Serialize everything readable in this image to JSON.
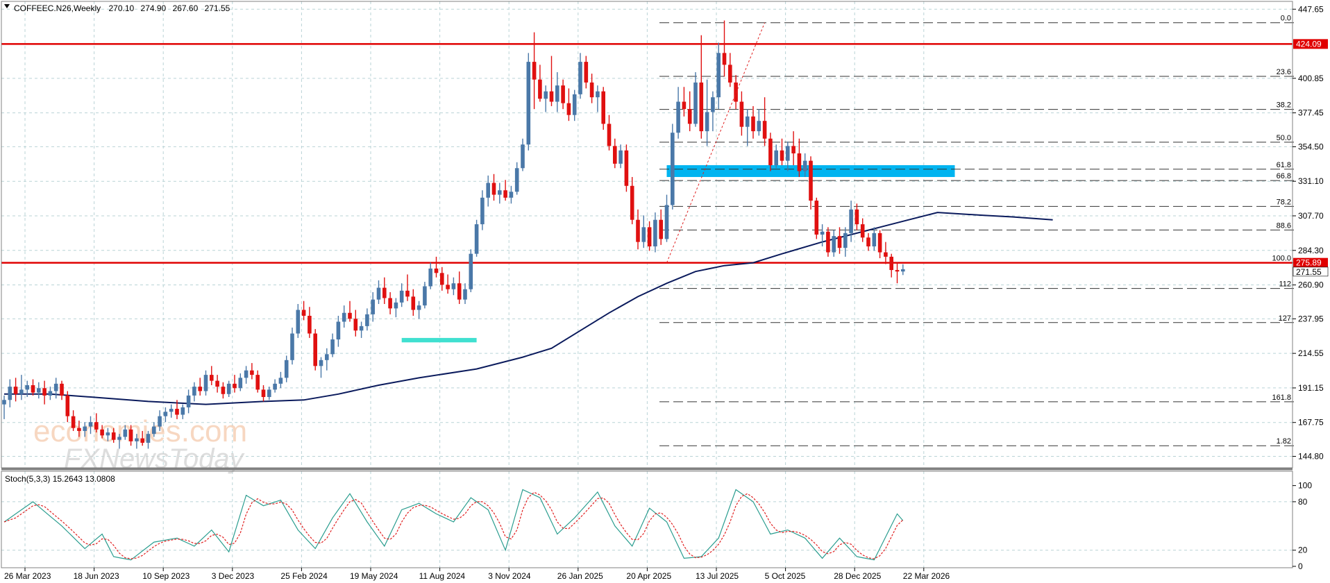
{
  "chart_data": {
    "type": "candlestick",
    "symbol": "COFFEEC.N26,Weekly",
    "ohlc_readout": [
      "270.10",
      "274.90",
      "267.60",
      "271.55"
    ],
    "price_axis": {
      "range": [
        138,
        452
      ],
      "ticks": [
        "447.65",
        "400.85",
        "377.45",
        "354.50",
        "331.10",
        "307.70",
        "284.30",
        "260.90",
        "237.95",
        "214.55",
        "191.15",
        "167.75",
        "144.80"
      ]
    },
    "date_axis": {
      "labels": [
        "26 Mar 2023",
        "18 Jun 2023",
        "10 Sep 2023",
        "3 Dec 2023",
        "25 Feb 2024",
        "19 May 2024",
        "11 Aug 2024",
        "3 Nov 2024",
        "26 Jan 2025",
        "20 Apr 2025",
        "13 Jul 2025",
        "5 Oct 2025",
        "28 Dec 2025",
        "22 Mar 2026"
      ]
    },
    "horizontal_lines": [
      {
        "value": 424.09,
        "label": "424.09",
        "color": "#e00000"
      },
      {
        "value": 275.89,
        "label": "275.89",
        "color": "#e00000"
      }
    ],
    "current_price": {
      "value": 271.55,
      "label": "271.55"
    },
    "fibonacci_levels": [
      {
        "label": "0.0",
        "value": 438.5
      },
      {
        "label": "23.6",
        "value": 402.2
      },
      {
        "label": "38.2",
        "value": 379.8
      },
      {
        "label": "50.0",
        "value": 357.6
      },
      {
        "label": "61.8",
        "value": 339.3
      },
      {
        "label": "66.8",
        "value": 331.6
      },
      {
        "label": "78.2",
        "value": 314.1
      },
      {
        "label": "88.6",
        "value": 298.1
      },
      {
        "label": "100.0",
        "value": 275.9
      },
      {
        "label": "112",
        "value": 258.5
      },
      {
        "label": "127",
        "value": 235.4
      },
      {
        "label": "161.8",
        "value": 181.8
      },
      {
        "label": "1.82",
        "value": 152.0
      }
    ],
    "zones": [
      {
        "color": "#00b4f0",
        "from_week": 115,
        "to_week": 165,
        "high": 342,
        "low": 334
      },
      {
        "color": "#40e0d0",
        "from_week": 69,
        "to_week": 82,
        "high": 225,
        "low": 222
      }
    ],
    "moving_average": {
      "color": "#0a1a5c",
      "points": [
        [
          0,
          187
        ],
        [
          8,
          187
        ],
        [
          15,
          185
        ],
        [
          25,
          182
        ],
        [
          35,
          180
        ],
        [
          45,
          182
        ],
        [
          52,
          183
        ],
        [
          58,
          187
        ],
        [
          65,
          193
        ],
        [
          72,
          198
        ],
        [
          82,
          204
        ],
        [
          90,
          212
        ],
        [
          95,
          218
        ],
        [
          100,
          230
        ],
        [
          105,
          242
        ],
        [
          110,
          253
        ],
        [
          115,
          262
        ],
        [
          120,
          270
        ],
        [
          125,
          274
        ],
        [
          130,
          275.9
        ],
        [
          135,
          282
        ],
        [
          142,
          290
        ],
        [
          150,
          298
        ],
        [
          157,
          305
        ],
        [
          162,
          310
        ],
        [
          170,
          308
        ],
        [
          175,
          307
        ],
        [
          182,
          305
        ]
      ]
    },
    "candles": [
      [
        180,
        186,
        170,
        183
      ],
      [
        183,
        197,
        178,
        192
      ],
      [
        192,
        198,
        182,
        187
      ],
      [
        187,
        200,
        183,
        190
      ],
      [
        190,
        196,
        185,
        193
      ],
      [
        193,
        197,
        186,
        188
      ],
      [
        188,
        195,
        184,
        191
      ],
      [
        191,
        196,
        180,
        186
      ],
      [
        186,
        192,
        183,
        189
      ],
      [
        189,
        198,
        184,
        194
      ],
      [
        194,
        196,
        183,
        186
      ],
      [
        186,
        189,
        168,
        172
      ],
      [
        172,
        176,
        162,
        164
      ],
      [
        164,
        169,
        158,
        162
      ],
      [
        162,
        168,
        158,
        165
      ],
      [
        165,
        172,
        160,
        168
      ],
      [
        168,
        174,
        161,
        163
      ],
      [
        163,
        166,
        157,
        159
      ],
      [
        159,
        164,
        155,
        161
      ],
      [
        161,
        164,
        154,
        156
      ],
      [
        156,
        160,
        150,
        158
      ],
      [
        158,
        166,
        156,
        163
      ],
      [
        163,
        166,
        152,
        155
      ],
      [
        155,
        160,
        150,
        157
      ],
      [
        157,
        162,
        152,
        154
      ],
      [
        154,
        162,
        150,
        160
      ],
      [
        160,
        168,
        158,
        165
      ],
      [
        165,
        176,
        162,
        172
      ],
      [
        172,
        178,
        168,
        175
      ],
      [
        175,
        180,
        171,
        177
      ],
      [
        177,
        183,
        170,
        173
      ],
      [
        173,
        180,
        170,
        178
      ],
      [
        178,
        190,
        174,
        186
      ],
      [
        186,
        195,
        182,
        192
      ],
      [
        192,
        198,
        186,
        189
      ],
      [
        189,
        203,
        186,
        200
      ],
      [
        200,
        206,
        193,
        196
      ],
      [
        196,
        200,
        188,
        192
      ],
      [
        192,
        195,
        184,
        187
      ],
      [
        187,
        196,
        185,
        194
      ],
      [
        194,
        200,
        188,
        191
      ],
      [
        191,
        201,
        189,
        198
      ],
      [
        198,
        206,
        194,
        203
      ],
      [
        203,
        208,
        197,
        200
      ],
      [
        200,
        203,
        188,
        190
      ],
      [
        190,
        193,
        182,
        185
      ],
      [
        185,
        192,
        183,
        190
      ],
      [
        190,
        197,
        188,
        194
      ],
      [
        194,
        202,
        191,
        198
      ],
      [
        198,
        213,
        195,
        210
      ],
      [
        210,
        232,
        207,
        228
      ],
      [
        228,
        248,
        225,
        244
      ],
      [
        244,
        250,
        237,
        240
      ],
      [
        240,
        246,
        225,
        228
      ],
      [
        228,
        231,
        203,
        206
      ],
      [
        206,
        212,
        198,
        210
      ],
      [
        210,
        218,
        203,
        214
      ],
      [
        214,
        228,
        212,
        224
      ],
      [
        224,
        240,
        219,
        236
      ],
      [
        236,
        247,
        232,
        242
      ],
      [
        242,
        250,
        236,
        238
      ],
      [
        238,
        244,
        226,
        230
      ],
      [
        230,
        236,
        225,
        233
      ],
      [
        233,
        245,
        230,
        241
      ],
      [
        241,
        256,
        236,
        251
      ],
      [
        251,
        264,
        248,
        259
      ],
      [
        259,
        266,
        248,
        252
      ],
      [
        252,
        256,
        241,
        245
      ],
      [
        245,
        252,
        239,
        249
      ],
      [
        249,
        262,
        246,
        257
      ],
      [
        257,
        268,
        250,
        253
      ],
      [
        253,
        258,
        240,
        244
      ],
      [
        244,
        250,
        238,
        247
      ],
      [
        247,
        263,
        245,
        260
      ],
      [
        260,
        276,
        258,
        272
      ],
      [
        272,
        280,
        266,
        269
      ],
      [
        269,
        273,
        257,
        261
      ],
      [
        261,
        268,
        255,
        258
      ],
      [
        258,
        266,
        254,
        262
      ],
      [
        262,
        270,
        248,
        251
      ],
      [
        251,
        262,
        248,
        258
      ],
      [
        258,
        285,
        256,
        282
      ],
      [
        282,
        305,
        280,
        302
      ],
      [
        302,
        325,
        298,
        320
      ],
      [
        320,
        335,
        314,
        330
      ],
      [
        330,
        336,
        318,
        322
      ],
      [
        322,
        330,
        316,
        325
      ],
      [
        325,
        332,
        318,
        320
      ],
      [
        320,
        328,
        316,
        324
      ],
      [
        324,
        344,
        322,
        340
      ],
      [
        340,
        360,
        338,
        356
      ],
      [
        356,
        418,
        352,
        412
      ],
      [
        412,
        432,
        380,
        400
      ],
      [
        400,
        410,
        385,
        387
      ],
      [
        387,
        396,
        378,
        392
      ],
      [
        392,
        416,
        382,
        385
      ],
      [
        385,
        405,
        378,
        396
      ],
      [
        396,
        400,
        380,
        384
      ],
      [
        384,
        394,
        372,
        376
      ],
      [
        376,
        393,
        372,
        390
      ],
      [
        390,
        418,
        387,
        412
      ],
      [
        412,
        416,
        394,
        398
      ],
      [
        398,
        404,
        384,
        388
      ],
      [
        388,
        396,
        378,
        392
      ],
      [
        392,
        395,
        366,
        370
      ],
      [
        370,
        376,
        352,
        355
      ],
      [
        355,
        360,
        340,
        343
      ],
      [
        343,
        356,
        340,
        352
      ],
      [
        352,
        356,
        324,
        328
      ],
      [
        328,
        334,
        302,
        305
      ],
      [
        305,
        312,
        285,
        290
      ],
      [
        290,
        308,
        286,
        300
      ],
      [
        300,
        304,
        284,
        287
      ],
      [
        287,
        310,
        283,
        305
      ],
      [
        305,
        312,
        288,
        292
      ],
      [
        292,
        322,
        290,
        315
      ],
      [
        315,
        370,
        312,
        364
      ],
      [
        364,
        395,
        360,
        385
      ],
      [
        385,
        395,
        375,
        380
      ],
      [
        380,
        392,
        365,
        370
      ],
      [
        370,
        405,
        368,
        398
      ],
      [
        398,
        430,
        360,
        365
      ],
      [
        365,
        400,
        355,
        378
      ],
      [
        378,
        392,
        365,
        388
      ],
      [
        388,
        425,
        380,
        418
      ],
      [
        418,
        440,
        402,
        410
      ],
      [
        410,
        418,
        395,
        398
      ],
      [
        398,
        403,
        380,
        385
      ],
      [
        385,
        392,
        362,
        368
      ],
      [
        368,
        380,
        355,
        375
      ],
      [
        375,
        382,
        360,
        365
      ],
      [
        365,
        380,
        362,
        372
      ],
      [
        372,
        388,
        355,
        360
      ],
      [
        360,
        364,
        338,
        342
      ],
      [
        342,
        356,
        340,
        352
      ],
      [
        352,
        360,
        342,
        345
      ],
      [
        345,
        358,
        338,
        355
      ],
      [
        355,
        365,
        342,
        350
      ],
      [
        350,
        360,
        334,
        338
      ],
      [
        338,
        350,
        334,
        345
      ],
      [
        345,
        348,
        312,
        318
      ],
      [
        318,
        320,
        292,
        295
      ],
      [
        295,
        302,
        287,
        297
      ],
      [
        297,
        300,
        280,
        283
      ],
      [
        283,
        298,
        280,
        294
      ],
      [
        294,
        300,
        282,
        286
      ],
      [
        286,
        300,
        280,
        296
      ],
      [
        296,
        318,
        290,
        312
      ],
      [
        312,
        316,
        298,
        302
      ],
      [
        302,
        306,
        290,
        293
      ],
      [
        293,
        296,
        284,
        287
      ],
      [
        287,
        300,
        284,
        296
      ],
      [
        296,
        298,
        279,
        283
      ],
      [
        283,
        290,
        275,
        280
      ],
      [
        280,
        282,
        266,
        271
      ],
      [
        271,
        276,
        262,
        270
      ],
      [
        270,
        274.9,
        267.6,
        271.55
      ]
    ],
    "stochastic": {
      "label": "Stoch(5,3,3) 15.2643 13.0808",
      "range": [
        0,
        110
      ],
      "ticks": [
        "100",
        "80",
        "20",
        "0"
      ],
      "main_color": "#2a9d8f",
      "signal_color": "#e02020",
      "main_keypoints": [
        [
          0,
          55
        ],
        [
          5,
          80
        ],
        [
          10,
          50
        ],
        [
          14,
          22
        ],
        [
          17,
          40
        ],
        [
          19,
          12
        ],
        [
          22,
          8
        ],
        [
          26,
          30
        ],
        [
          30,
          35
        ],
        [
          33,
          25
        ],
        [
          36,
          45
        ],
        [
          39,
          18
        ],
        [
          42,
          88
        ],
        [
          45,
          75
        ],
        [
          48,
          82
        ],
        [
          51,
          45
        ],
        [
          54,
          22
        ],
        [
          57,
          60
        ],
        [
          60,
          90
        ],
        [
          63,
          55
        ],
        [
          66,
          25
        ],
        [
          69,
          70
        ],
        [
          72,
          78
        ],
        [
          75,
          65
        ],
        [
          78,
          55
        ],
        [
          81,
          85
        ],
        [
          84,
          70
        ],
        [
          87,
          20
        ],
        [
          90,
          95
        ],
        [
          93,
          85
        ],
        [
          96,
          40
        ],
        [
          99,
          60
        ],
        [
          103,
          92
        ],
        [
          106,
          50
        ],
        [
          109,
          25
        ],
        [
          112,
          72
        ],
        [
          115,
          55
        ],
        [
          118,
          10
        ],
        [
          121,
          12
        ],
        [
          124,
          35
        ],
        [
          127,
          95
        ],
        [
          130,
          80
        ],
        [
          133,
          40
        ],
        [
          136,
          45
        ],
        [
          139,
          35
        ],
        [
          142,
          10
        ],
        [
          145,
          35
        ],
        [
          148,
          12
        ],
        [
          151,
          8
        ],
        [
          155,
          65
        ],
        [
          158,
          40
        ],
        [
          161,
          35
        ],
        [
          164,
          15
        ],
        [
          166,
          18
        ]
      ]
    }
  }
}
